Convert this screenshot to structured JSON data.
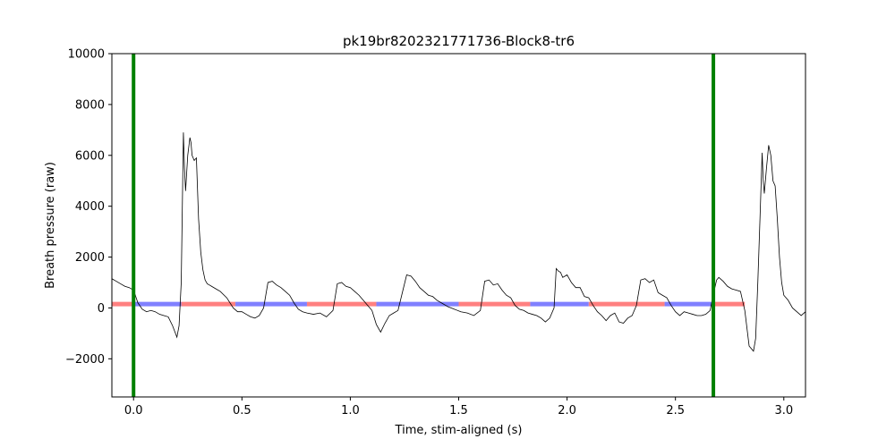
{
  "chart_data": {
    "type": "line",
    "title": "pk19br8202321771736-Block8-tr6",
    "xlabel": "Time, stim-aligned (s)",
    "ylabel": "Breath pressure (raw)",
    "xlim": [
      -0.1,
      3.1
    ],
    "ylim": [
      -3500,
      10000
    ],
    "xticks": [
      0.0,
      0.5,
      1.0,
      1.5,
      2.0,
      2.5,
      3.0
    ],
    "xtick_labels": [
      "0.0",
      "0.5",
      "1.0",
      "1.5",
      "2.0",
      "2.5",
      "3.0"
    ],
    "yticks": [
      -2000,
      0,
      2000,
      4000,
      6000,
      8000,
      10000
    ],
    "ytick_labels": [
      "−2000",
      "0",
      "2000",
      "4000",
      "6000",
      "8000",
      "10000"
    ],
    "grid": false,
    "colors": {
      "trace": "#000000",
      "vline": "#008000",
      "inhale": "#ff8080",
      "exhale": "#8080ff"
    },
    "vertical_lines": [
      0.0,
      2.675
    ],
    "phase_level": 150,
    "phase_segments": [
      {
        "phase": "inhale",
        "x0": -0.1,
        "x1": 0.0
      },
      {
        "phase": "exhale",
        "x0": 0.0,
        "x1": 0.22
      },
      {
        "phase": "inhale",
        "x0": 0.22,
        "x1": 0.47
      },
      {
        "phase": "exhale",
        "x0": 0.47,
        "x1": 0.8
      },
      {
        "phase": "inhale",
        "x0": 0.8,
        "x1": 1.12
      },
      {
        "phase": "exhale",
        "x0": 1.12,
        "x1": 1.5
      },
      {
        "phase": "inhale",
        "x0": 1.5,
        "x1": 1.83
      },
      {
        "phase": "exhale",
        "x0": 1.83,
        "x1": 2.1
      },
      {
        "phase": "inhale",
        "x0": 2.1,
        "x1": 2.45
      },
      {
        "phase": "exhale",
        "x0": 2.45,
        "x1": 2.675
      },
      {
        "phase": "inhale",
        "x0": 2.675,
        "x1": 2.82
      }
    ],
    "series": [
      {
        "x": [
          -0.1,
          -0.08,
          -0.06,
          -0.04,
          -0.02,
          0.0,
          0.02,
          0.04,
          0.06,
          0.08,
          0.1,
          0.12,
          0.14,
          0.16,
          0.18,
          0.2,
          0.21,
          0.22,
          0.23,
          0.235,
          0.24,
          0.25,
          0.26,
          0.265,
          0.27,
          0.28,
          0.29,
          0.3,
          0.31,
          0.32,
          0.33,
          0.34,
          0.35,
          0.36,
          0.38,
          0.4,
          0.43,
          0.46,
          0.48,
          0.5,
          0.52,
          0.54,
          0.56,
          0.58,
          0.6,
          0.62,
          0.64,
          0.66,
          0.68,
          0.7,
          0.72,
          0.74,
          0.76,
          0.78,
          0.8,
          0.83,
          0.86,
          0.89,
          0.92,
          0.94,
          0.96,
          0.98,
          1.0,
          1.02,
          1.04,
          1.06,
          1.08,
          1.1,
          1.12,
          1.14,
          1.16,
          1.18,
          1.2,
          1.22,
          1.24,
          1.26,
          1.28,
          1.3,
          1.32,
          1.34,
          1.36,
          1.38,
          1.4,
          1.42,
          1.45,
          1.48,
          1.51,
          1.54,
          1.57,
          1.6,
          1.62,
          1.64,
          1.66,
          1.68,
          1.7,
          1.72,
          1.74,
          1.76,
          1.78,
          1.8,
          1.82,
          1.84,
          1.86,
          1.88,
          1.9,
          1.92,
          1.94,
          1.95,
          1.96,
          1.97,
          1.98,
          2.0,
          2.02,
          2.04,
          2.06,
          2.08,
          2.1,
          2.12,
          2.14,
          2.16,
          2.18,
          2.2,
          2.22,
          2.24,
          2.26,
          2.28,
          2.3,
          2.32,
          2.34,
          2.36,
          2.38,
          2.4,
          2.42,
          2.44,
          2.46,
          2.48,
          2.5,
          2.52,
          2.54,
          2.56,
          2.58,
          2.6,
          2.62,
          2.64,
          2.66,
          2.675,
          2.69,
          2.7,
          2.72,
          2.74,
          2.76,
          2.78,
          2.8,
          2.82,
          2.84,
          2.86,
          2.87,
          2.88,
          2.89,
          2.9,
          2.905,
          2.91,
          2.92,
          2.93,
          2.94,
          2.95,
          2.96,
          2.97,
          2.98,
          2.99,
          3.0,
          3.02,
          3.04,
          3.06,
          3.08,
          3.1
        ],
        "y": [
          1150,
          1050,
          950,
          850,
          800,
          700,
          200,
          -50,
          -150,
          -100,
          -150,
          -250,
          -300,
          -350,
          -700,
          -1150,
          -700,
          1000,
          6900,
          5500,
          4600,
          6000,
          6700,
          6500,
          6000,
          5800,
          5900,
          3500,
          2200,
          1500,
          1100,
          950,
          900,
          850,
          750,
          650,
          400,
          0,
          -150,
          -150,
          -250,
          -350,
          -400,
          -300,
          0,
          1000,
          1050,
          900,
          800,
          650,
          500,
          200,
          -50,
          -150,
          -200,
          -250,
          -200,
          -350,
          -100,
          950,
          1000,
          850,
          800,
          650,
          500,
          300,
          100,
          -100,
          -650,
          -950,
          -600,
          -300,
          -200,
          -100,
          600,
          1300,
          1250,
          1050,
          800,
          650,
          500,
          450,
          300,
          200,
          50,
          -50,
          -150,
          -200,
          -300,
          -100,
          1050,
          1100,
          900,
          950,
          700,
          500,
          400,
          100,
          -50,
          -100,
          -200,
          -250,
          -300,
          -400,
          -550,
          -400,
          0,
          1550,
          1450,
          1400,
          1200,
          1300,
          1000,
          800,
          800,
          450,
          400,
          100,
          -150,
          -300,
          -500,
          -300,
          -200,
          -550,
          -600,
          -400,
          -300,
          100,
          1100,
          1150,
          1000,
          1100,
          600,
          500,
          400,
          100,
          -150,
          -300,
          -150,
          -200,
          -250,
          -300,
          -300,
          -250,
          -100,
          550,
          1100,
          1200,
          1050,
          850,
          750,
          700,
          650,
          -100,
          -1500,
          -1700,
          -1200,
          1000,
          3500,
          6100,
          5000,
          4500,
          5500,
          6400,
          6000,
          5000,
          4800,
          3500,
          2000,
          1000,
          500,
          300,
          0,
          -150,
          -300,
          -150
        ]
      }
    ]
  }
}
